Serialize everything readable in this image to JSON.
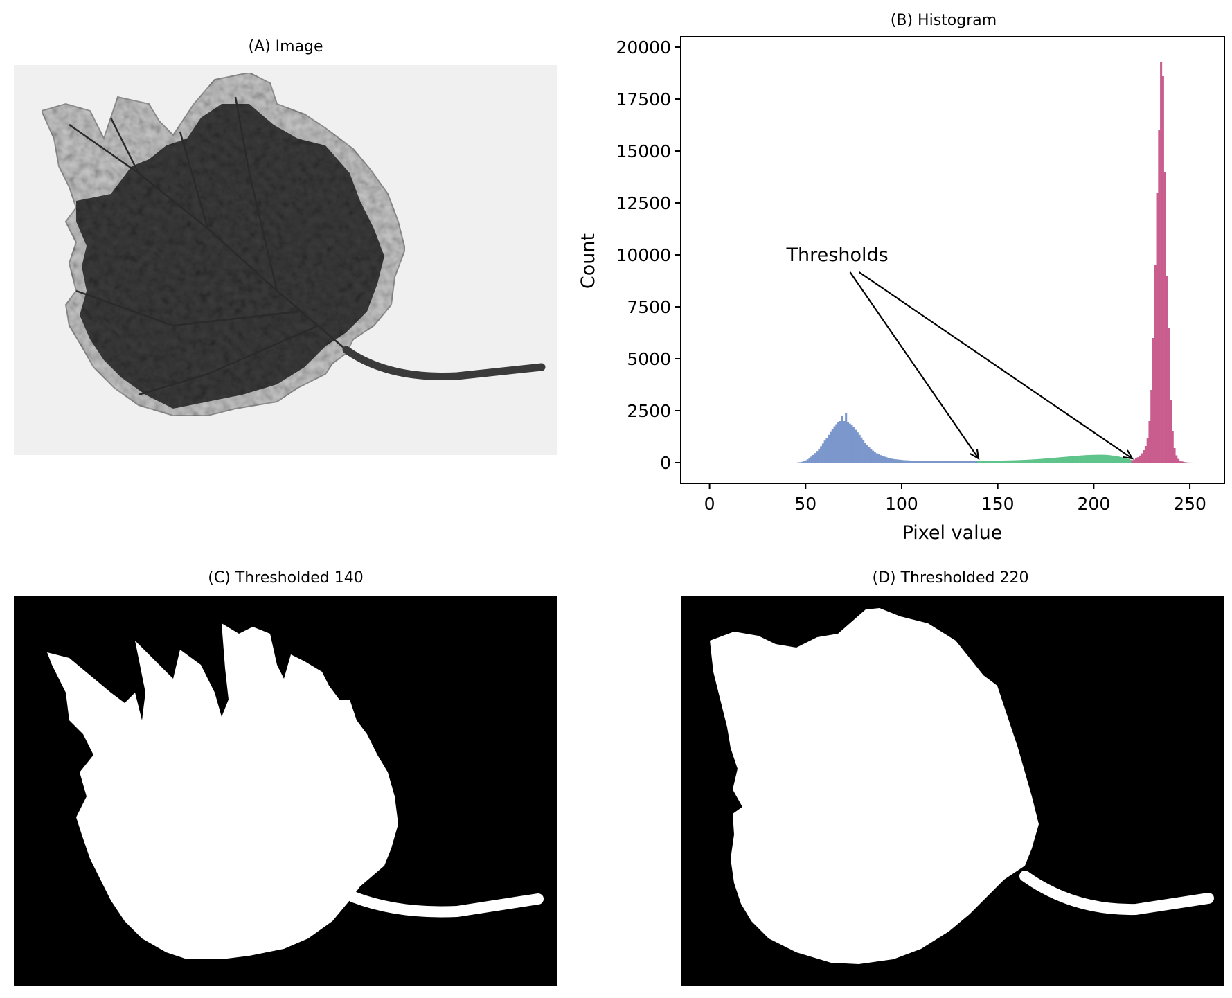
{
  "panels": {
    "a": {
      "title": "(A) Image"
    },
    "b": {
      "title": "(B) Histogram"
    },
    "c": {
      "title": "(C) Thresholded 140"
    },
    "d": {
      "title": "(D) Thresholded 220"
    }
  },
  "chart_data": {
    "type": "bar",
    "title": "(B) Histogram",
    "xlabel": "Pixel value",
    "ylabel": "Count",
    "xlim": [
      -15,
      268
    ],
    "ylim": [
      -1000,
      20500
    ],
    "xticks": [
      0,
      50,
      100,
      150,
      200,
      250
    ],
    "yticks": [
      0,
      2500,
      5000,
      7500,
      10000,
      12500,
      15000,
      17500,
      20000
    ],
    "thresholds": [
      140,
      220
    ],
    "annotation": {
      "text": "Thresholds",
      "text_at": [
        40,
        10000
      ],
      "arrow_targets": [
        [
          140,
          0
        ],
        [
          220,
          0
        ]
      ]
    },
    "series": [
      {
        "color": "#7b97cc",
        "x_range": [
          0,
          139
        ],
        "values": [
          0,
          0,
          0,
          0,
          0,
          0,
          0,
          0,
          0,
          0,
          0,
          0,
          0,
          0,
          0,
          0,
          0,
          0,
          0,
          0,
          0,
          0,
          0,
          0,
          0,
          0,
          0,
          0,
          0,
          0,
          0,
          0,
          0,
          0,
          0,
          0,
          0,
          0,
          0,
          0,
          0,
          0,
          0,
          0,
          0,
          0,
          10,
          20,
          40,
          70,
          110,
          160,
          220,
          290,
          370,
          460,
          560,
          670,
          790,
          920,
          1060,
          1200,
          1340,
          1480,
          1620,
          1750,
          1850,
          1940,
          2000,
          2250,
          2000,
          2400,
          1950,
          1880,
          1800,
          1700,
          1580,
          1460,
          1340,
          1210,
          1080,
          960,
          850,
          750,
          660,
          580,
          510,
          450,
          400,
          360,
          320,
          290,
          260,
          230,
          210,
          190,
          170,
          160,
          150,
          140,
          130,
          120,
          115,
          110,
          105,
          100,
          97,
          95,
          93,
          92,
          91,
          90,
          90,
          90,
          90,
          90,
          89,
          88,
          87,
          86,
          85,
          84,
          83,
          82,
          81,
          80,
          80,
          80,
          80,
          80,
          80,
          80,
          80,
          80,
          80,
          80,
          80,
          80,
          80,
          80,
          80
        ]
      },
      {
        "color": "#5fc48b",
        "x_range": [
          140,
          219
        ],
        "values": [
          80,
          80,
          80,
          82,
          84,
          86,
          88,
          90,
          92,
          94,
          96,
          98,
          100,
          102,
          104,
          106,
          108,
          110,
          113,
          116,
          119,
          122,
          126,
          130,
          134,
          138,
          143,
          148,
          153,
          158,
          164,
          170,
          177,
          184,
          191,
          198,
          206,
          214,
          222,
          230,
          238,
          246,
          254,
          262,
          270,
          278,
          286,
          294,
          302,
          310,
          318,
          326,
          334,
          342,
          348,
          354,
          360,
          364,
          368,
          372,
          374,
          376,
          378,
          380,
          380,
          378,
          374,
          368,
          360,
          350,
          338,
          324,
          308,
          290,
          270,
          248,
          224,
          198,
          170,
          140
        ]
      },
      {
        "color": "#c95d8e",
        "x_range": [
          220,
          255
        ],
        "values": [
          120,
          150,
          200,
          260,
          340,
          450,
          600,
          800,
          1200,
          2000,
          3500,
          6000,
          9500,
          13000,
          16000,
          19300,
          18600,
          14000,
          9000,
          6500,
          3000,
          1500,
          700,
          350,
          180,
          100,
          60,
          30,
          15,
          8,
          4,
          2,
          1,
          0,
          0,
          0
        ]
      }
    ]
  }
}
